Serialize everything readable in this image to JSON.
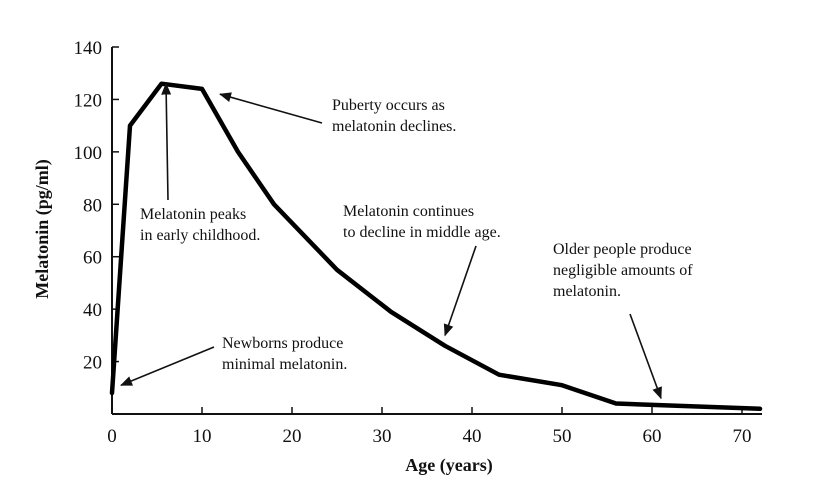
{
  "chart_data": {
    "type": "line",
    "xlabel": "Age (years)",
    "ylabel": "Melatonin (pg/ml)",
    "xlim": [
      0,
      72
    ],
    "ylim": [
      0,
      140
    ],
    "xticks": [
      0,
      10,
      20,
      30,
      40,
      50,
      60,
      70
    ],
    "yticks": [
      20,
      40,
      60,
      80,
      100,
      120,
      140
    ],
    "series": [
      {
        "x": [
          0,
          2,
          5.5,
          10,
          14,
          18,
          25,
          31,
          37,
          43,
          50,
          56,
          72
        ],
        "y": [
          8,
          110,
          126,
          124,
          100,
          80,
          55,
          39,
          26,
          15,
          11,
          4,
          2
        ]
      }
    ],
    "annotations": [
      {
        "lines": [
          "Puberty occurs as",
          "melatonin declines."
        ],
        "target": [
          12,
          122
        ]
      },
      {
        "lines": [
          "Melatonin peaks",
          "in early childhood."
        ],
        "target": [
          6,
          126
        ]
      },
      {
        "lines": [
          "Melatonin continues",
          "to decline in middle age."
        ],
        "target": [
          37,
          30
        ]
      },
      {
        "lines": [
          "Older people produce",
          "negligible amounts of",
          "melatonin."
        ],
        "target": [
          61,
          6
        ]
      },
      {
        "lines": [
          "Newborns produce",
          "minimal melatonin."
        ],
        "target": [
          1,
          11
        ]
      }
    ]
  }
}
